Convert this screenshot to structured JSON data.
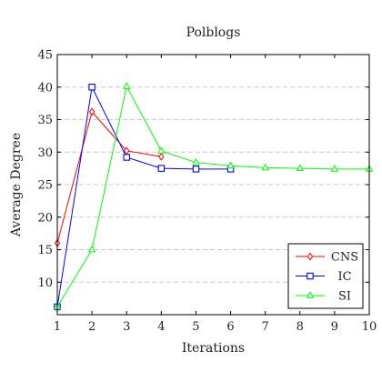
{
  "chart_data": {
    "type": "line",
    "title": "Polblogs",
    "xlabel": "Iterations",
    "ylabel": "Average Degree",
    "xlim": [
      1,
      10
    ],
    "ylim": [
      5,
      45
    ],
    "x_ticks": [
      1,
      2,
      3,
      4,
      5,
      6,
      7,
      8,
      9,
      10
    ],
    "y_ticks": [
      10,
      15,
      20,
      25,
      30,
      35,
      40,
      45
    ],
    "grid": "horizontal-dashed",
    "legend_position": "bottom-right",
    "series": [
      {
        "name": "CNS",
        "color": "#ff0000",
        "marker": "diamond",
        "x": [
          1,
          2,
          3,
          4
        ],
        "y": [
          16,
          36.2,
          30.2,
          29.3
        ]
      },
      {
        "name": "IC",
        "color": "#0000ff",
        "marker": "square",
        "x": [
          1,
          2,
          3,
          4,
          5,
          6
        ],
        "y": [
          6.2,
          40,
          29.2,
          27.5,
          27.4,
          27.4
        ]
      },
      {
        "name": "SI",
        "color": "#00ff00",
        "marker": "triangle",
        "x": [
          1,
          2,
          3,
          4,
          5,
          6,
          7,
          8,
          9,
          10
        ],
        "y": [
          6.2,
          15,
          40.1,
          30.2,
          28.4,
          27.9,
          27.6,
          27.5,
          27.4,
          27.4
        ]
      }
    ]
  }
}
